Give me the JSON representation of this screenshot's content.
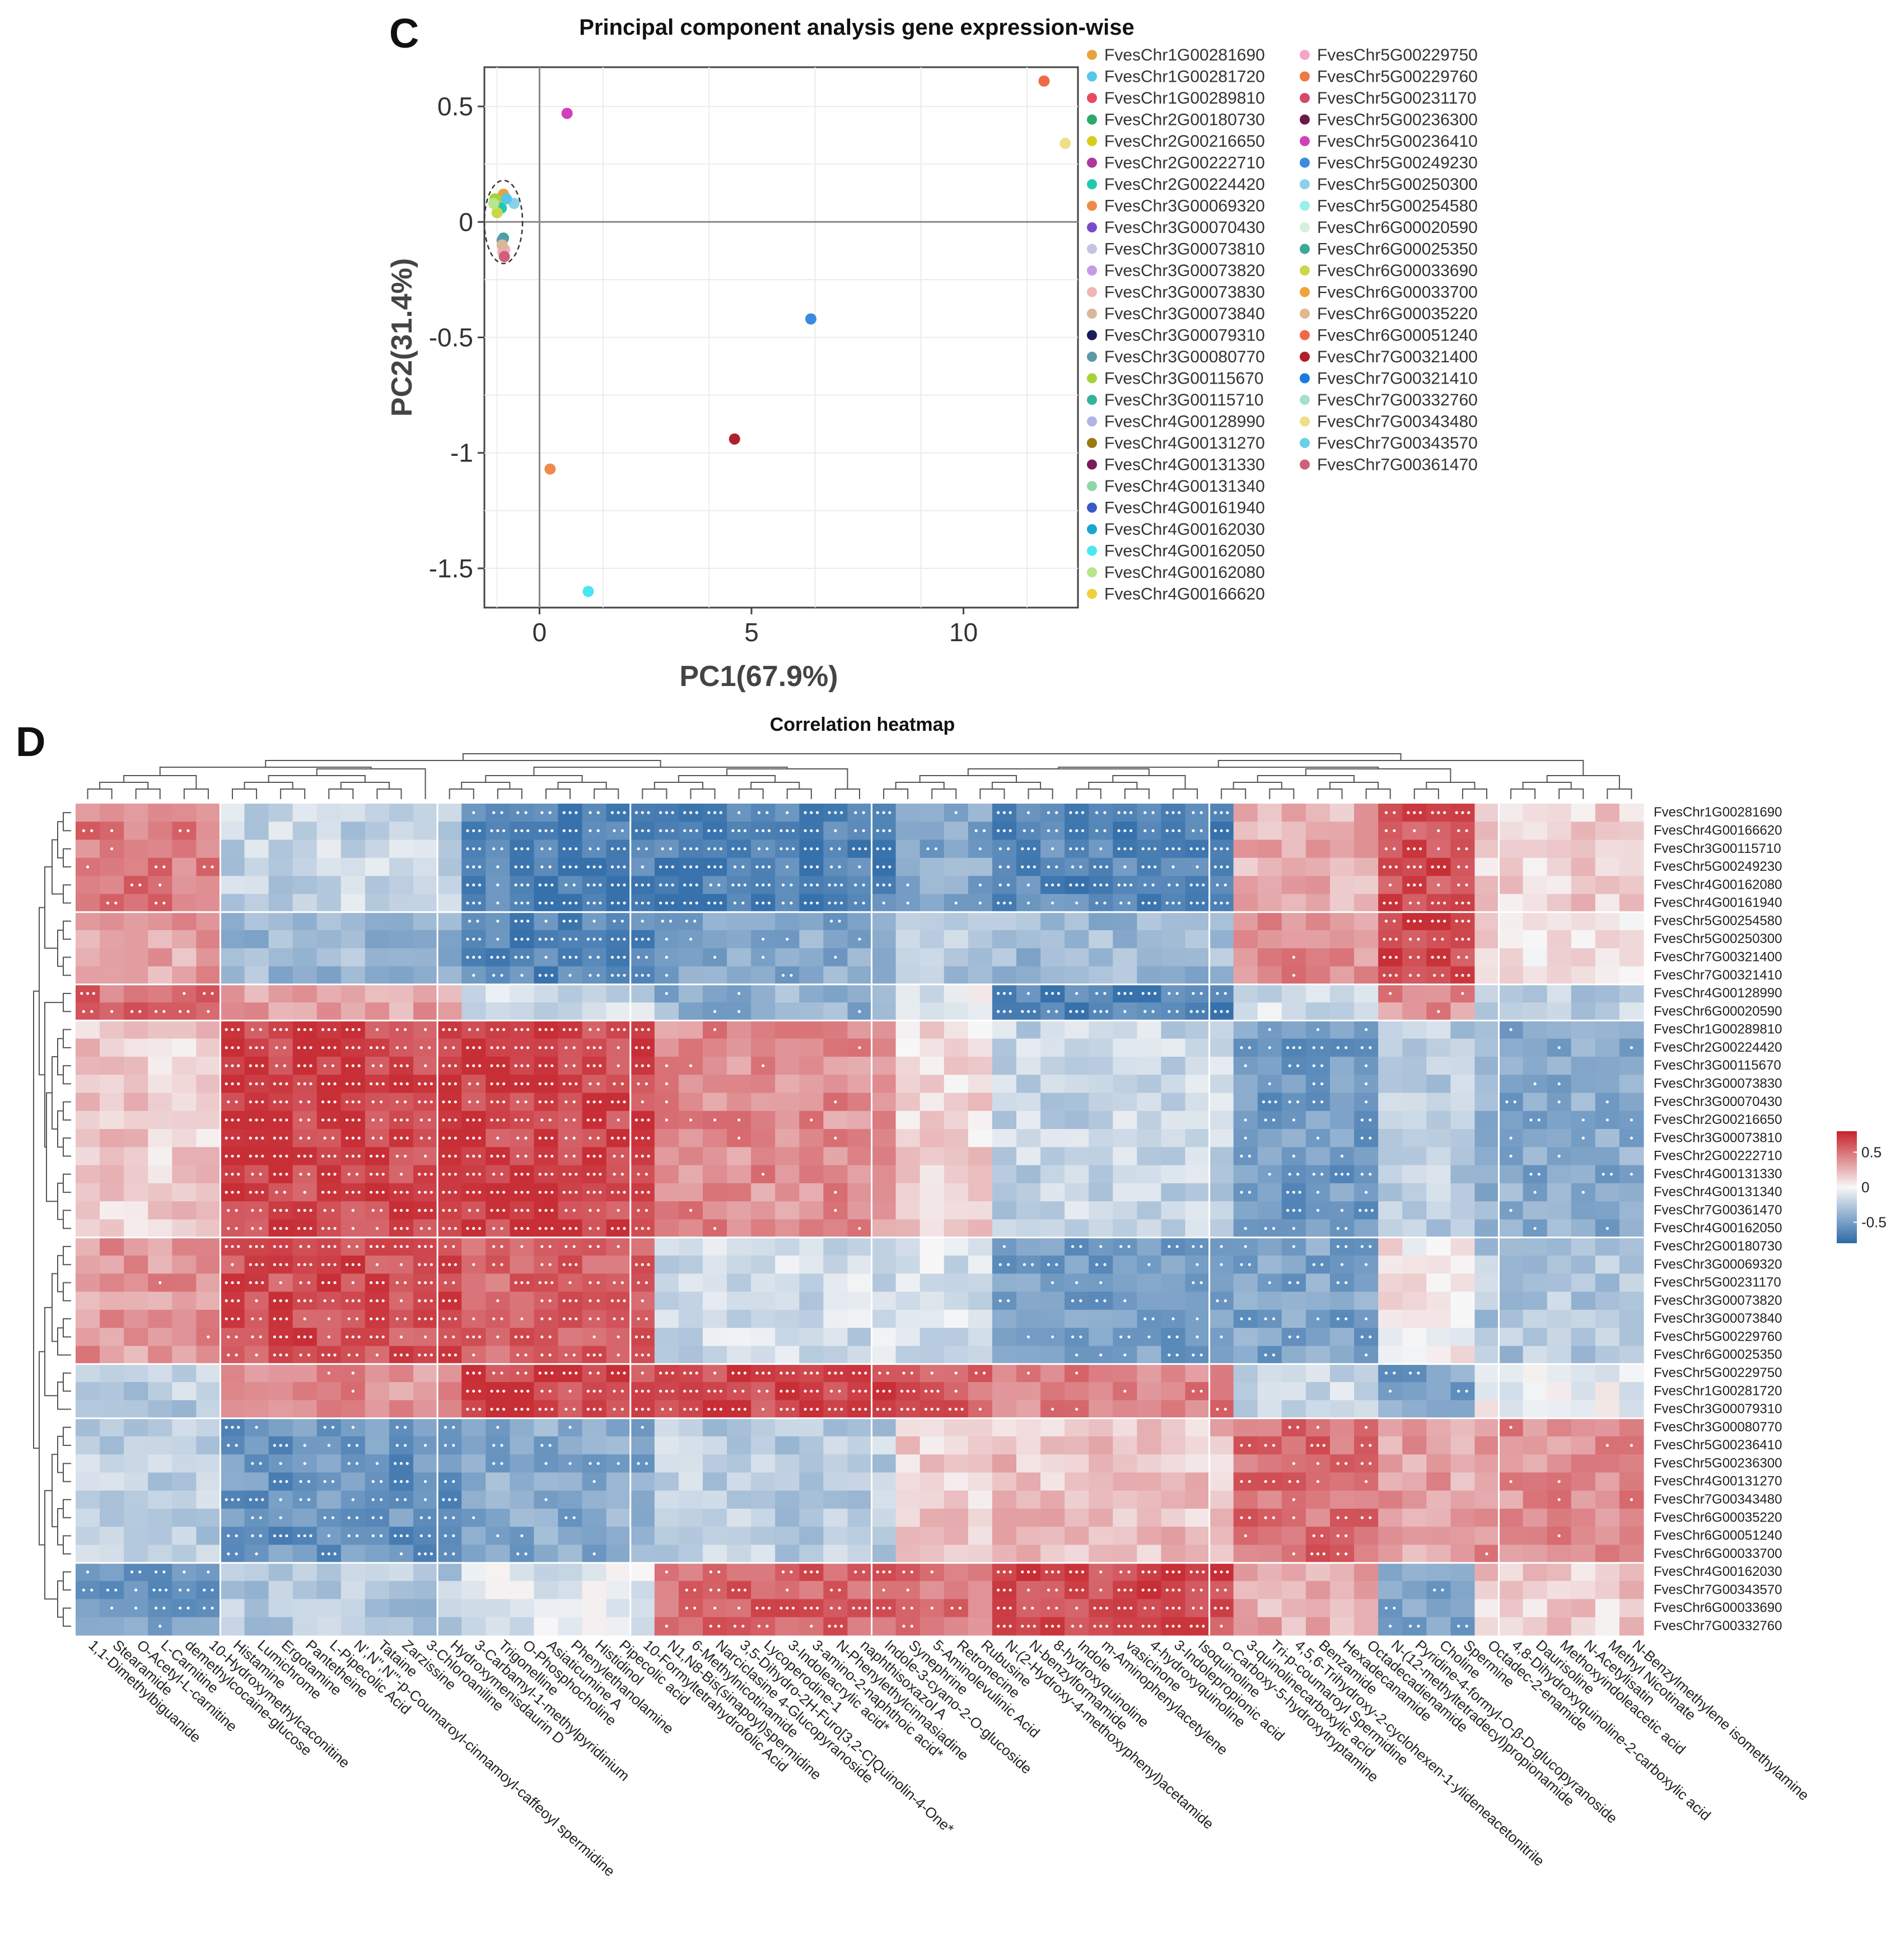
{
  "panels": {
    "c_letter": "C",
    "d_letter": "D"
  },
  "chart_data": [
    {
      "type": "scatter",
      "title": "Principal component analysis gene expression-wise",
      "xlabel": "PC1(67.9%)",
      "ylabel": "PC2(31.4%)",
      "xlim": [
        -1.3,
        12.7
      ],
      "ylim": [
        -1.67,
        0.67
      ],
      "xticks": [
        0,
        5,
        10
      ],
      "yticks": [
        0.5,
        0,
        -0.5,
        -1,
        -1.5
      ],
      "xtick_labels": [
        "0",
        "5",
        "10"
      ],
      "ytick_labels": [
        "0.5",
        "0",
        "-0.5",
        "-1",
        "-1.5"
      ],
      "grid": true,
      "cluster_ellipse": {
        "cx": -0.85,
        "cy": 0.0,
        "rx": 0.45,
        "ry": 0.18
      },
      "legend": [
        {
          "name": "FvesChr1G00281690",
          "color": "#e8a33c"
        },
        {
          "name": "FvesChr1G00281720",
          "color": "#56c7e8"
        },
        {
          "name": "FvesChr1G00289810",
          "color": "#e84a5f"
        },
        {
          "name": "FvesChr2G00180730",
          "color": "#2ca86a"
        },
        {
          "name": "FvesChr2G00216650",
          "color": "#d8cc1a"
        },
        {
          "name": "FvesChr2G00222710",
          "color": "#b0379e"
        },
        {
          "name": "FvesChr2G00224420",
          "color": "#22c9b0"
        },
        {
          "name": "FvesChr3G00069320",
          "color": "#f08a4a"
        },
        {
          "name": "FvesChr3G00070430",
          "color": "#7a4bc9"
        },
        {
          "name": "FvesChr3G00073810",
          "color": "#c4c4e4"
        },
        {
          "name": "FvesChr3G00073820",
          "color": "#c59ae8"
        },
        {
          "name": "FvesChr3G00073830",
          "color": "#f2b4b4"
        },
        {
          "name": "FvesChr3G00073840",
          "color": "#dcb696"
        },
        {
          "name": "FvesChr3G00079310",
          "color": "#1a1a5e"
        },
        {
          "name": "FvesChr3G00080770",
          "color": "#5a9aa8"
        },
        {
          "name": "FvesChr3G00115670",
          "color": "#a6d13a"
        },
        {
          "name": "FvesChr3G00115710",
          "color": "#35b39a"
        },
        {
          "name": "FvesChr4G00128990",
          "color": "#b0b4e4"
        },
        {
          "name": "FvesChr4G00131270",
          "color": "#9a7a10"
        },
        {
          "name": "FvesChr4G00131330",
          "color": "#7a1a5a"
        },
        {
          "name": "FvesChr4G00131340",
          "color": "#8ed6a8"
        },
        {
          "name": "FvesChr4G00161940",
          "color": "#3a5ac8"
        },
        {
          "name": "FvesChr4G00162030",
          "color": "#1aa6d0"
        },
        {
          "name": "FvesChr4G00162050",
          "color": "#4ae6f2"
        },
        {
          "name": "FvesChr4G00162080",
          "color": "#b8e68a"
        },
        {
          "name": "FvesChr4G00166620",
          "color": "#f2cf3a"
        },
        {
          "name": "FvesChr5G00229750",
          "color": "#f5a6c8"
        },
        {
          "name": "FvesChr5G00229760",
          "color": "#ef7a45"
        },
        {
          "name": "FvesChr5G00231170",
          "color": "#d44a6a"
        },
        {
          "name": "FvesChr5G00236300",
          "color": "#6a1a4a"
        },
        {
          "name": "FvesChr5G00236410",
          "color": "#d040b8"
        },
        {
          "name": "FvesChr5G00249230",
          "color": "#3a8ae0"
        },
        {
          "name": "FvesChr5G00250300",
          "color": "#8ad0ea"
        },
        {
          "name": "FvesChr5G00254580",
          "color": "#9af0ea"
        },
        {
          "name": "FvesChr6G00020590",
          "color": "#d4f0dc"
        },
        {
          "name": "FvesChr6G00025350",
          "color": "#3aa89a"
        },
        {
          "name": "FvesChr6G00033690",
          "color": "#c8d84a"
        },
        {
          "name": "FvesChr6G00033700",
          "color": "#f0a23c"
        },
        {
          "name": "FvesChr6G00035220",
          "color": "#e0b890"
        },
        {
          "name": "FvesChr6G00051240",
          "color": "#f06a4a"
        },
        {
          "name": "FvesChr7G00321400",
          "color": "#b0202a"
        },
        {
          "name": "FvesChr7G00321410",
          "color": "#1a7ae0"
        },
        {
          "name": "FvesChr7G00332760",
          "color": "#a6e0cc"
        },
        {
          "name": "FvesChr7G00343480",
          "color": "#eee08a"
        },
        {
          "name": "FvesChr7G00343570",
          "color": "#6ad0ea"
        },
        {
          "name": "FvesChr7G00361470",
          "color": "#d0607a"
        }
      ],
      "points": [
        {
          "name": "FvesChr6G00051240",
          "x": 11.9,
          "y": 0.61,
          "color": "#f06a4a"
        },
        {
          "name": "FvesChr7G00343480",
          "x": 12.4,
          "y": 0.34,
          "color": "#eee08a"
        },
        {
          "name": "FvesChr5G00236410",
          "x": 0.65,
          "y": 0.47,
          "color": "#d040b8"
        },
        {
          "name": "FvesChr5G00249230",
          "x": 6.4,
          "y": -0.42,
          "color": "#3a8ae0"
        },
        {
          "name": "FvesChr7G00321400",
          "x": 4.6,
          "y": -0.94,
          "color": "#b0202a"
        },
        {
          "name": "FvesChr3G00069320",
          "x": 0.25,
          "y": -1.07,
          "color": "#f08a4a"
        },
        {
          "name": "FvesChr4G00162050",
          "x": 1.15,
          "y": -1.6,
          "color": "#4ae6f2"
        },
        {
          "name": "FvesChr1G00281690",
          "x": -0.85,
          "y": 0.12,
          "color": "#e8a33c"
        },
        {
          "name": "FvesChr2G00216650",
          "x": -0.95,
          "y": 0.09,
          "color": "#d8cc1a"
        },
        {
          "name": "FvesChr3G00115670",
          "x": -1.05,
          "y": 0.1,
          "color": "#a6d13a"
        },
        {
          "name": "FvesChr5G00250300",
          "x": -0.6,
          "y": 0.08,
          "color": "#8ad0ea"
        },
        {
          "name": "FvesChr2G00224420",
          "x": -0.9,
          "y": 0.06,
          "color": "#22c9b0"
        },
        {
          "name": "FvesChr6G00033690",
          "x": -1.0,
          "y": 0.04,
          "color": "#c8d84a"
        },
        {
          "name": "FvesChr4G00162080",
          "x": -1.08,
          "y": 0.08,
          "color": "#b8e68a"
        },
        {
          "name": "FvesChr1G00281720",
          "x": -0.78,
          "y": 0.1,
          "color": "#56c7e8"
        },
        {
          "name": "FvesChr6G00025350",
          "x": -0.85,
          "y": -0.07,
          "color": "#3aa89a"
        },
        {
          "name": "FvesChr3G00080770",
          "x": -0.88,
          "y": -0.08,
          "color": "#5a9aa8"
        },
        {
          "name": "FvesChr3G00073830",
          "x": -0.82,
          "y": -0.12,
          "color": "#f2b4b4"
        },
        {
          "name": "FvesChr5G00229750",
          "x": -0.86,
          "y": -0.13,
          "color": "#f5a6c8"
        },
        {
          "name": "FvesChr7G00361470",
          "x": -0.83,
          "y": -0.15,
          "color": "#d0607a"
        },
        {
          "name": "FvesChr3G00073840",
          "x": -0.88,
          "y": -0.1,
          "color": "#dcb696"
        }
      ]
    },
    {
      "type": "heatmap",
      "title": "Correlation heatmap",
      "colorbar": {
        "ticks": [
          0.5,
          0,
          -0.5
        ],
        "tick_labels": [
          "0.5",
          "0",
          "-0.5"
        ],
        "range": [
          -0.8,
          0.8
        ],
        "low_color": "#2c6aa8",
        "mid_color": "#f7f7f7",
        "high_color": "#c6232b"
      },
      "rows": [
        "FvesChr1G00281690",
        "FvesChr4G00166620",
        "FvesChr3G00115710",
        "FvesChr5G00249230",
        "FvesChr4G00162080",
        "FvesChr4G00161940",
        "FvesChr5G00254580",
        "FvesChr5G00250300",
        "FvesChr7G00321400",
        "FvesChr7G00321410",
        "FvesChr4G00128990",
        "FvesChr6G00020590",
        "FvesChr1G00289810",
        "FvesChr2G00224420",
        "FvesChr3G00115670",
        "FvesChr3G00073830",
        "FvesChr3G00070430",
        "FvesChr2G00216650",
        "FvesChr3G00073810",
        "FvesChr2G00222710",
        "FvesChr4G00131330",
        "FvesChr4G00131340",
        "FvesChr7G00361470",
        "FvesChr4G00162050",
        "FvesChr2G00180730",
        "FvesChr3G00069320",
        "FvesChr5G00231170",
        "FvesChr3G00073820",
        "FvesChr3G00073840",
        "FvesChr5G00229760",
        "FvesChr6G00025350",
        "FvesChr5G00229750",
        "FvesChr1G00281720",
        "FvesChr3G00079310",
        "FvesChr3G00080770",
        "FvesChr5G00236410",
        "FvesChr5G00236300",
        "FvesChr4G00131270",
        "FvesChr7G00343480",
        "FvesChr6G00035220",
        "FvesChr6G00051240",
        "FvesChr6G00033700",
        "FvesChr4G00162030",
        "FvesChr7G00343570",
        "FvesChr6G00033690",
        "FvesChr7G00332760"
      ],
      "columns": [
        "1,1-Dimethylbiguanide",
        "Stearamide",
        "O-Acetyl-L-carnitine",
        "L-Carnitine",
        "demethylcocaine-glucose",
        "10-Hydroxymethylcaconitine",
        "Histamine",
        "Lumichrome",
        "Ergotamine",
        "Pantetheine",
        "L-Pipecolic Acid",
        "N',N'',N'''-p-Coumaroyl-cinnamoyl-caffeoyl spermidine",
        "Tataine",
        "Zarzissine",
        "3-Chloroaniline",
        "Hydroxymenisdaurin D",
        "3-Carbamyl-1-methylpyridinium",
        "Trigonelline",
        "O-Phosphocholine",
        "Asiaticumine A",
        "Phenylethanolamine",
        "Histidinol",
        "Pipecolic acid",
        "10-Formyltetrahydrofolic Acid",
        "N1,N8-Bis(sinapoyl)spermidine",
        "6-Methylnicotinamide",
        "Narciclasine 4-Glucopyranoside",
        "3,5-Dihydro-2H-Furo[3,2-C]Quinolin-4-One*",
        "Lycoperodine-1",
        "3-Indoleacrylic acid*",
        "3-amino-2-naphthoic acid*",
        "N-Phenylethylcinnasiadine",
        "naphthisoxazol A",
        "Indole-3-cyano-2-O-glucoside",
        "Synephrine",
        "5-Aminolevulinic Acid",
        "Retronecine",
        "Rubusine",
        "N-(2-Hydroxy-4-methoxyphenyl)acetamide",
        "N-benzylformamide",
        "8-hydroxyquinoline",
        "Indole",
        "m-Aminophenylacetylene",
        "vasicinone",
        "4-hydroxyquinoline",
        "3-Indolepropionic acid",
        "Isoquinoline",
        "o-Carboxy-5-hydroxytryptamine",
        "3-quinolinecarboxylic acid",
        "Tri-p-coumaroyl Spermidine",
        "4,5,6-Trihydroxy-2-cyclohexen-1-ylideneacetonitrile",
        "Benzamide",
        "Hexadecanamide",
        "Octadecadienamide",
        "N-(12-methyltetradecyl)propionamide",
        "Pyridine-4-formyl-O-β-D-glucopyranoside",
        "Choline",
        "Spermine",
        "Octadec-2-enamide",
        "4,8-Dihydroxyquinoline-2-carboxylic acid",
        "Daurisoline",
        "Methoxyindoleacetic acid",
        "N-Acetylisatin",
        "Methyl Nicotinate",
        "N-Benzylmethylene isomethylamine"
      ],
      "column_groups": [
        6,
        9,
        8,
        10,
        14,
        12,
        6
      ],
      "row_groups": [
        6,
        4,
        2,
        12,
        7,
        3,
        8,
        4
      ],
      "row_pattern": [
        0,
        0,
        0,
        0,
        0,
        0,
        1,
        1,
        1,
        1,
        2,
        2,
        3,
        3,
        3,
        3,
        3,
        3,
        3,
        3,
        3,
        3,
        3,
        3,
        4,
        4,
        4,
        4,
        4,
        4,
        4,
        5,
        5,
        5,
        6,
        6,
        6,
        6,
        6,
        6,
        6,
        6,
        7,
        7,
        7,
        7
      ],
      "pattern_values": [
        [
          0.6,
          -0.25,
          -0.85,
          -0.85,
          -0.55,
          -0.8,
          0.35,
          0.8,
          0.2
        ],
        [
          0.4,
          -0.45,
          -0.8,
          -0.55,
          -0.35,
          -0.45,
          0.5,
          0.85,
          0.1
        ],
        [
          0.65,
          0.4,
          -0.2,
          -0.5,
          -0.1,
          -0.85,
          -0.2,
          0.5,
          -0.3
        ],
        [
          0.2,
          0.85,
          0.85,
          0.5,
          0.15,
          -0.25,
          -0.65,
          -0.3,
          -0.55
        ],
        [
          0.45,
          0.8,
          0.7,
          -0.2,
          -0.15,
          -0.65,
          -0.6,
          0.05,
          -0.35
        ],
        [
          -0.3,
          0.5,
          0.85,
          0.85,
          0.7,
          0.55,
          -0.25,
          -0.6,
          -0.05
        ],
        [
          -0.3,
          -0.7,
          -0.55,
          -0.3,
          0.2,
          0.25,
          0.65,
          0.4,
          0.5
        ],
        [
          -0.65,
          -0.35,
          -0.1,
          0.7,
          0.6,
          0.85,
          0.35,
          -0.55,
          0.2
        ]
      ],
      "pattern_column_segments": [
        6,
        10,
        8,
        10,
        4,
        10,
        6,
        4,
        7
      ]
    }
  ]
}
